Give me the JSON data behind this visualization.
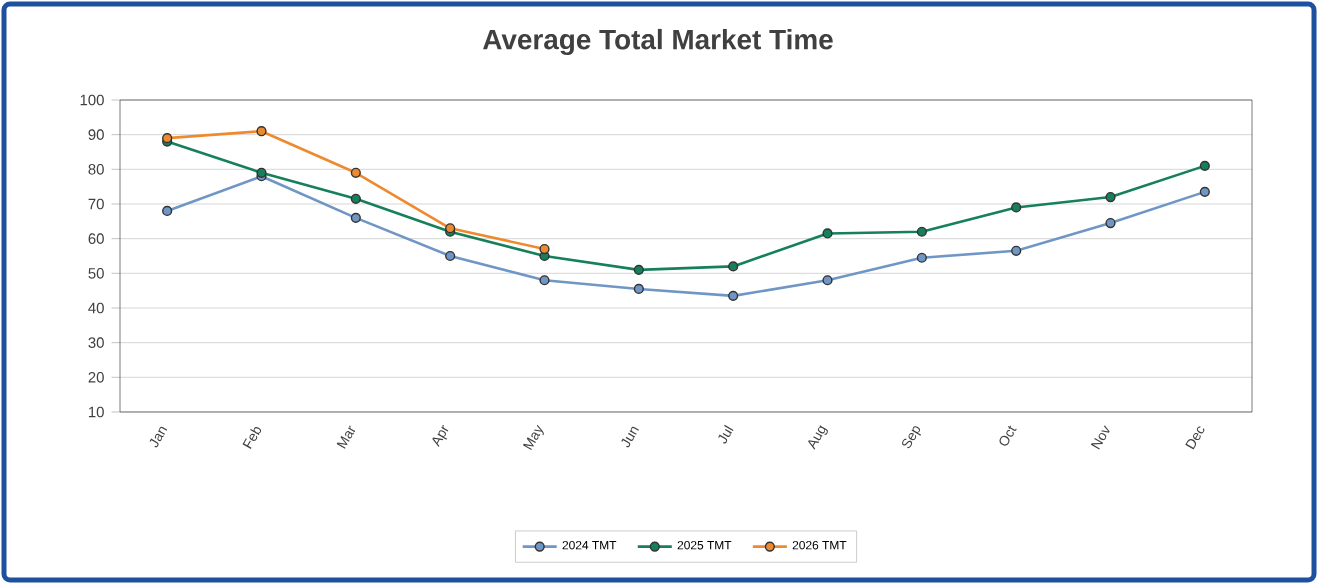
{
  "chart_data": {
    "type": "line",
    "title": "Average Total Market Time",
    "categories": [
      "Jan",
      "Feb",
      "Mar",
      "Apr",
      "May",
      "Jun",
      "Jul",
      "Aug",
      "Sep",
      "Oct",
      "Nov",
      "Dec"
    ],
    "series": [
      {
        "name": "2024 TMT",
        "color": "#6f96c4",
        "values": [
          68,
          78,
          66,
          55,
          48,
          45.5,
          43.5,
          48,
          54.5,
          56.5,
          64.5,
          73.5
        ]
      },
      {
        "name": "2025 TMT",
        "color": "#15805a",
        "values": [
          88,
          79,
          71.5,
          62,
          55,
          51,
          52,
          61.5,
          62,
          69,
          72,
          81
        ]
      },
      {
        "name": "2026 TMT",
        "color": "#ee8a2e",
        "values": [
          89,
          91,
          79,
          63,
          57,
          null,
          null,
          null,
          null,
          null,
          null,
          null
        ]
      }
    ],
    "ylim": [
      10,
      100
    ],
    "yticks": [
      10,
      20,
      30,
      40,
      50,
      60,
      70,
      80,
      90,
      100
    ],
    "grid": "y",
    "legend": "bottom",
    "marker": "circle",
    "line_style": "solid"
  }
}
